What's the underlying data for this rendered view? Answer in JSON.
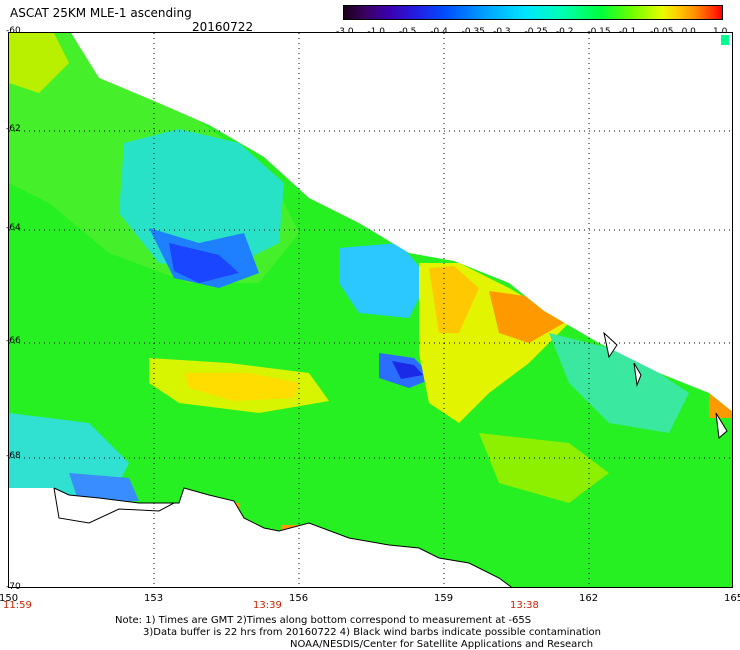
{
  "header": {
    "title": "ASCAT 25KM MLE-1 ascending",
    "date": "20160722"
  },
  "colorbar": {
    "ticks": [
      "-3.0",
      "-1.0",
      "-0.5",
      "-0.4",
      "-0.35",
      "-0.3",
      "-0.25",
      "-0.2",
      "-0.15",
      "-0.1",
      "-0.05",
      "0.0",
      "1.0"
    ]
  },
  "map": {
    "lat_labels": [
      "-60",
      "-62",
      "-64",
      "-66",
      "-68",
      "-70"
    ],
    "lon_labels": [
      "150",
      "153",
      "156",
      "159",
      "162",
      "165"
    ],
    "time_labels": [
      "11:59",
      "13:39",
      "13:38"
    ],
    "colors": {
      "land": "#ffffff",
      "coast": "#000000",
      "grid": "#000000"
    }
  },
  "notes": {
    "line1": "Note: 1) Times are GMT 2)Times along bottom correspond to measurement at -65S",
    "line2": "3)Data buffer is 22 hrs from 20160722 4) Black wind barbs indicate possible contamination",
    "line3": "NOAA/NESDIS/Center for Satellite Applications and Research"
  }
}
